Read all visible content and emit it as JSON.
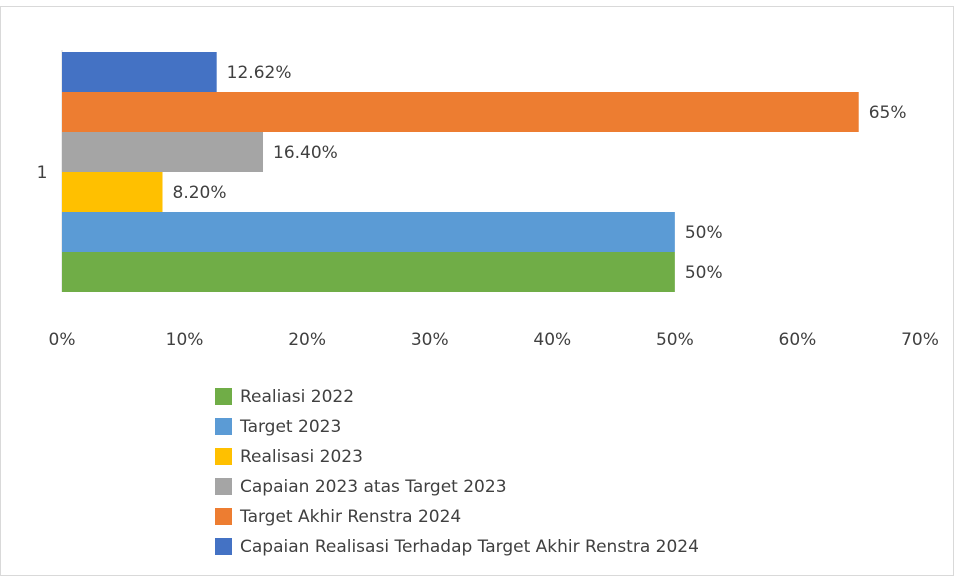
{
  "chart_data": {
    "type": "hbar",
    "categories": [
      "1"
    ],
    "series": [
      {
        "name": "Realiasi 2022",
        "color": "#70ad47",
        "values": [
          50
        ],
        "value_labels": [
          "50%"
        ]
      },
      {
        "name": "Target 2023",
        "color": "#5b9bd5",
        "values": [
          50
        ],
        "value_labels": [
          "50%"
        ]
      },
      {
        "name": "Realisasi 2023",
        "color": "#ffc000",
        "values": [
          8.2
        ],
        "value_labels": [
          "8.20%"
        ]
      },
      {
        "name": "Capaian 2023 atas Target 2023",
        "color": "#a5a5a5",
        "values": [
          16.4
        ],
        "value_labels": [
          "16.40%"
        ]
      },
      {
        "name": "Target Akhir Renstra 2024",
        "color": "#ed7d31",
        "values": [
          65
        ],
        "value_labels": [
          "65%"
        ]
      },
      {
        "name": "Capaian Realisasi Terhadap Target Akhir Renstra 2024",
        "color": "#4472c4",
        "values": [
          12.62
        ],
        "value_labels": [
          "12.62%"
        ]
      }
    ],
    "xlim": [
      0,
      70
    ],
    "xticks": [
      {
        "value": 0,
        "label": "0%"
      },
      {
        "value": 10,
        "label": "10%"
      },
      {
        "value": 20,
        "label": "20%"
      },
      {
        "value": 30,
        "label": "30%"
      },
      {
        "value": 40,
        "label": "40%"
      },
      {
        "value": 50,
        "label": "50%"
      },
      {
        "value": 60,
        "label": "60%"
      },
      {
        "value": 70,
        "label": "70%"
      }
    ],
    "legend": "bottom"
  }
}
